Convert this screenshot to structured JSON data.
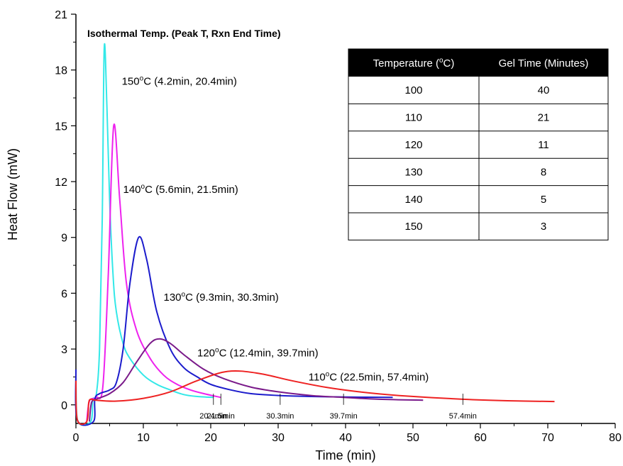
{
  "chart_data": {
    "type": "line",
    "title": "Isothermal Temp. (Peak T, Rxn End Time)",
    "xlabel": "Time (min)",
    "ylabel": "Heat Flow (mW)",
    "xlim": [
      0,
      80
    ],
    "ylim": [
      -1,
      21
    ],
    "xticks": [
      0,
      10,
      20,
      30,
      40,
      50,
      60,
      70,
      80
    ],
    "yticks": [
      0,
      3,
      6,
      9,
      12,
      15,
      18,
      21
    ],
    "grid": false,
    "series": [
      {
        "name": "150",
        "color": "#33e8e8",
        "label": "150",
        "label_suffix": "C (4.2min, 20.4min)",
        "label_at": [
          6.8,
          17.2
        ],
        "points": [
          [
            0,
            1.0
          ],
          [
            0.3,
            -0.9
          ],
          [
            2.2,
            -0.9
          ],
          [
            2.5,
            0.3
          ],
          [
            3.0,
            0.5
          ],
          [
            3.5,
            3
          ],
          [
            3.9,
            10
          ],
          [
            4.2,
            19.2
          ],
          [
            4.6,
            16
          ],
          [
            5.0,
            11
          ],
          [
            5.5,
            7
          ],
          [
            6,
            5
          ],
          [
            7,
            3.3
          ],
          [
            8,
            2.5
          ],
          [
            10,
            1.6
          ],
          [
            12,
            1.1
          ],
          [
            14,
            0.8
          ],
          [
            16,
            0.55
          ],
          [
            18,
            0.45
          ],
          [
            20.4,
            0.4
          ]
        ]
      },
      {
        "name": "140",
        "color": "#ee22ee",
        "label": "140",
        "label_suffix": "C (5.6min, 21.5min)",
        "label_at": [
          7.0,
          11.4
        ],
        "points": [
          [
            1.6,
            -0.9
          ],
          [
            2.0,
            0.2
          ],
          [
            3.0,
            0.4
          ],
          [
            4,
            1
          ],
          [
            4.8,
            7
          ],
          [
            5.6,
            15.0
          ],
          [
            6.5,
            11
          ],
          [
            7.5,
            6.5
          ],
          [
            9,
            4
          ],
          [
            11,
            2.5
          ],
          [
            13,
            1.6
          ],
          [
            15,
            1.1
          ],
          [
            17,
            0.8
          ],
          [
            19,
            0.6
          ],
          [
            21.5,
            0.4
          ]
        ]
      },
      {
        "name": "130",
        "color": "#1c1ccc",
        "label": "130",
        "label_suffix": "C (9.3min, 30.3min)",
        "label_at": [
          13.0,
          5.6
        ],
        "points": [
          [
            0,
            1.9
          ],
          [
            0.2,
            -0.8
          ],
          [
            2.6,
            -0.9
          ],
          [
            2.8,
            0.3
          ],
          [
            3.5,
            0.6
          ],
          [
            5,
            0.8
          ],
          [
            6,
            1.2
          ],
          [
            7,
            3
          ],
          [
            8,
            6.5
          ],
          [
            9.3,
            9.0
          ],
          [
            10.5,
            7.8
          ],
          [
            12,
            5
          ],
          [
            14,
            3
          ],
          [
            16,
            2
          ],
          [
            18,
            1.5
          ],
          [
            20,
            1.1
          ],
          [
            23,
            0.8
          ],
          [
            26,
            0.6
          ],
          [
            30.3,
            0.5
          ],
          [
            35,
            0.45
          ],
          [
            40,
            0.42
          ],
          [
            47,
            0.4
          ]
        ]
      },
      {
        "name": "120",
        "color": "#7a1a8a",
        "label": "120",
        "label_suffix": "C (12.4min, 39.7min)",
        "label_at": [
          18.0,
          2.6
        ],
        "points": [
          [
            2.0,
            -0.9
          ],
          [
            2.3,
            0.1
          ],
          [
            3,
            0.3
          ],
          [
            5,
            0.6
          ],
          [
            7,
            1.2
          ],
          [
            9,
            2.3
          ],
          [
            11,
            3.3
          ],
          [
            12.4,
            3.55
          ],
          [
            14,
            3.3
          ],
          [
            16,
            2.7
          ],
          [
            19,
            1.9
          ],
          [
            22,
            1.4
          ],
          [
            26,
            0.95
          ],
          [
            30,
            0.7
          ],
          [
            35,
            0.5
          ],
          [
            39.7,
            0.4
          ],
          [
            45,
            0.3
          ],
          [
            51.5,
            0.25
          ]
        ]
      },
      {
        "name": "110",
        "color": "#ee2222",
        "label": "110",
        "label_suffix": "C (22.5min, 57.4min)",
        "label_at": [
          34.5,
          1.3
        ],
        "points": [
          [
            0,
            1.3
          ],
          [
            0.2,
            -0.8
          ],
          [
            1.6,
            -0.9
          ],
          [
            1.9,
            0.1
          ],
          [
            2.2,
            0.3
          ],
          [
            3,
            0.25
          ],
          [
            6,
            0.2
          ],
          [
            10,
            0.35
          ],
          [
            14,
            0.7
          ],
          [
            18,
            1.3
          ],
          [
            22.5,
            1.8
          ],
          [
            27,
            1.7
          ],
          [
            32,
            1.3
          ],
          [
            37,
            0.95
          ],
          [
            42,
            0.7
          ],
          [
            48,
            0.5
          ],
          [
            57.4,
            0.3
          ],
          [
            64,
            0.22
          ],
          [
            71,
            0.18
          ]
        ]
      }
    ],
    "end_markers": [
      {
        "x": 20.4,
        "label": "20.4min"
      },
      {
        "x": 21.5,
        "label": "21.5min"
      },
      {
        "x": 30.3,
        "label": "30.3min"
      },
      {
        "x": 39.7,
        "label": "39.7min"
      },
      {
        "x": 57.4,
        "label": "57.4min"
      }
    ],
    "table": {
      "headers": [
        "Temperature (",
        "C)",
        "Gel Time (Minutes)"
      ],
      "rows": [
        [
          "100",
          "40"
        ],
        [
          "110",
          "21"
        ],
        [
          "120",
          "11"
        ],
        [
          "130",
          "8"
        ],
        [
          "140",
          "5"
        ],
        [
          "150",
          "3"
        ]
      ]
    }
  }
}
